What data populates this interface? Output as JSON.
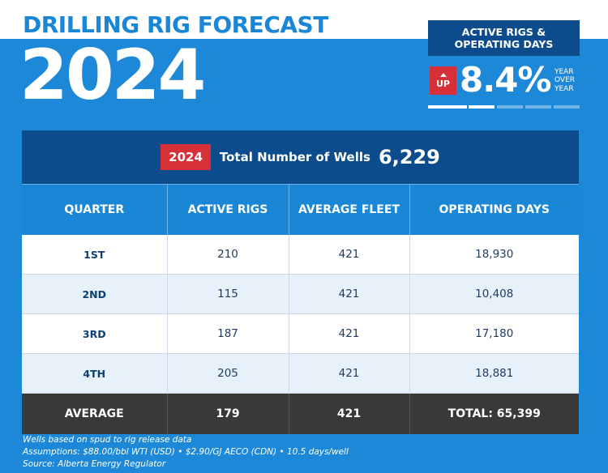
{
  "header": {
    "title": "DRILLING RIG FORECAST",
    "year": "2024"
  },
  "stat": {
    "label_line1": "ACTIVE RIGS &",
    "label_line2": "OPERATING DAYS",
    "badge": "UP",
    "percent": "8.4%",
    "yoy_line1": "YEAR",
    "yoy_line2": "OVER",
    "yoy_line3": "YEAR"
  },
  "summary": {
    "year_badge": "2024",
    "label": "Total Number of Wells",
    "value": "6,229"
  },
  "table": {
    "headers": [
      "QUARTER",
      "ACTIVE RIGS",
      "AVERAGE FLEET",
      "OPERATING DAYS"
    ],
    "rows": [
      [
        "1ST",
        "210",
        "421",
        "18,930"
      ],
      [
        "2ND",
        "115",
        "421",
        "10,408"
      ],
      [
        "3RD",
        "187",
        "421",
        "17,180"
      ],
      [
        "4TH",
        "205",
        "421",
        "18,881"
      ]
    ],
    "average": [
      "AVERAGE",
      "179",
      "421",
      "TOTAL: 65,399"
    ]
  },
  "notes": [
    "Wells based on spud to rig release data",
    "Assumptions: $88.00/bbl WTI (USD) • $2.90/GJ AECO (CDN) • 10.5 days/well",
    "Source: Alberta Energy Regulator"
  ],
  "colors": {
    "background": "#1e88d8",
    "navy": "#0d4c8c",
    "red": "#d63038",
    "dark_row": "#3a3938"
  }
}
